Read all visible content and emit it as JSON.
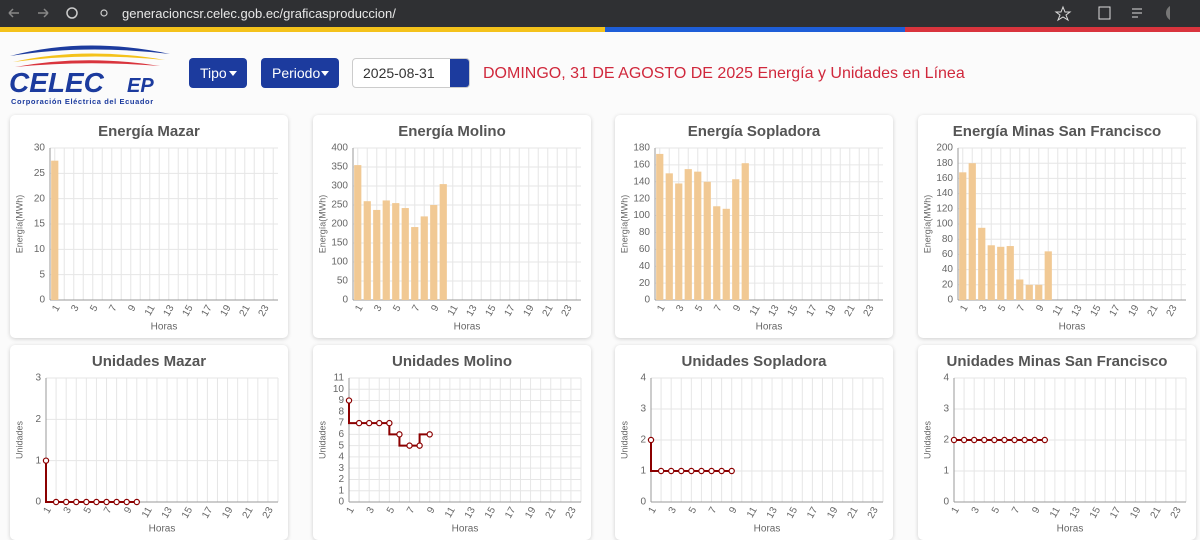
{
  "browser": {
    "url": "generacioncsr.celec.gob.ec/graficasproduccion/"
  },
  "header": {
    "logo": {
      "name": "CELEC",
      "suffix": "EP",
      "tagline": "Corporación Eléctrica del Ecuador"
    },
    "buttons": [
      "Tipo",
      "Periodo"
    ],
    "date": "2025-08-31",
    "heading": "DOMINGO, 31 DE AGOSTO DE 2025 Energía y Unidades en Línea"
  },
  "chart_data": [
    {
      "type": "bar",
      "title": "Energía Mazar",
      "x_label": "Horas",
      "y_label": "Energía(MWh)",
      "categories": [
        1,
        null,
        3,
        null,
        5,
        null,
        7,
        null,
        9,
        null,
        11,
        null,
        13,
        null,
        15,
        null,
        17,
        null,
        19,
        null,
        21,
        null,
        23,
        null
      ],
      "values": [
        27.5,
        null,
        null,
        null,
        null,
        null,
        null,
        null,
        null,
        null,
        null,
        null,
        null,
        null,
        null,
        null,
        null,
        null,
        null,
        null,
        null,
        null,
        null,
        null
      ],
      "color": "#f1c994",
      "ylim": [
        0,
        30
      ],
      "yticks": [
        0,
        5,
        10,
        15,
        20,
        25,
        30
      ],
      "grid": true
    },
    {
      "type": "bar",
      "title": "Energía Molino",
      "x_label": "Horas",
      "y_label": "Energía(MWh)",
      "categories": [
        1,
        null,
        3,
        null,
        5,
        null,
        7,
        null,
        9,
        null,
        11,
        null,
        13,
        null,
        15,
        null,
        17,
        null,
        19,
        null,
        21,
        null,
        23,
        null
      ],
      "values": [
        355,
        260,
        237,
        262,
        255,
        242,
        192,
        220,
        250,
        305,
        null,
        null,
        null,
        null,
        null,
        null,
        null,
        null,
        null,
        null,
        null,
        null,
        null,
        null
      ],
      "color": "#f1c994",
      "ylim": [
        0,
        400
      ],
      "yticks": [
        0,
        50,
        100,
        150,
        200,
        250,
        300,
        350,
        400
      ],
      "grid": true
    },
    {
      "type": "bar",
      "title": "Energía Sopladora",
      "x_label": "Horas",
      "y_label": "Energía(MWh)",
      "categories": [
        1,
        null,
        3,
        null,
        5,
        null,
        7,
        null,
        9,
        null,
        11,
        null,
        13,
        null,
        15,
        null,
        17,
        null,
        19,
        null,
        21,
        null,
        23,
        null
      ],
      "values": [
        173,
        150,
        138,
        155,
        152,
        140,
        111,
        108,
        143,
        162,
        null,
        null,
        null,
        null,
        null,
        null,
        null,
        null,
        null,
        null,
        null,
        null,
        null,
        null
      ],
      "color": "#f1c994",
      "ylim": [
        0,
        180
      ],
      "yticks": [
        0,
        20,
        40,
        60,
        80,
        100,
        120,
        140,
        160,
        180
      ],
      "grid": true
    },
    {
      "type": "bar",
      "title": "Energía Minas San Francisco",
      "x_label": "Horas",
      "y_label": "Energía(MWh)",
      "categories": [
        1,
        null,
        3,
        null,
        5,
        null,
        7,
        null,
        9,
        null,
        11,
        null,
        13,
        null,
        15,
        null,
        17,
        null,
        19,
        null,
        21,
        null,
        23,
        null
      ],
      "values": [
        168,
        180,
        95,
        72,
        70,
        71,
        27,
        20,
        20,
        64,
        null,
        null,
        null,
        null,
        null,
        null,
        null,
        null,
        null,
        null,
        null,
        null,
        null,
        null
      ],
      "color": "#f1c994",
      "ylim": [
        0,
        200
      ],
      "yticks": [
        0,
        20,
        40,
        60,
        80,
        100,
        120,
        140,
        160,
        180,
        200
      ],
      "grid": true
    },
    {
      "type": "line",
      "title": "Unidades Mazar",
      "x_label": "Horas",
      "y_label": "Unidades",
      "categories": [
        1,
        null,
        3,
        null,
        5,
        null,
        7,
        null,
        9,
        null,
        11,
        null,
        13,
        null,
        15,
        null,
        17,
        null,
        19,
        null,
        21,
        null,
        23,
        null
      ],
      "values": [
        1,
        0,
        0,
        0,
        0,
        0,
        0,
        0,
        0,
        0,
        null,
        null,
        null,
        null,
        null,
        null,
        null,
        null,
        null,
        null,
        null,
        null,
        null,
        null
      ],
      "color": "#8b0000",
      "ylim": [
        0,
        3
      ],
      "yticks": [
        0,
        1,
        2,
        3
      ],
      "grid": true
    },
    {
      "type": "line",
      "title": "Unidades Molino",
      "x_label": "Horas",
      "y_label": "Unidades",
      "categories": [
        1,
        null,
        3,
        null,
        5,
        null,
        7,
        null,
        9,
        null,
        11,
        null,
        13,
        null,
        15,
        null,
        17,
        null,
        19,
        null,
        21,
        null,
        23,
        null
      ],
      "values": [
        9,
        7,
        7,
        7,
        7,
        6,
        5,
        5,
        6,
        null,
        null,
        null,
        null,
        null,
        null,
        null,
        null,
        null,
        null,
        null,
        null,
        null,
        null,
        null
      ],
      "color": "#8b0000",
      "ylim": [
        0,
        11
      ],
      "yticks": [
        0,
        1,
        2,
        3,
        4,
        5,
        6,
        7,
        8,
        9,
        10,
        11
      ],
      "grid": true
    },
    {
      "type": "line",
      "title": "Unidades Sopladora",
      "x_label": "Horas",
      "y_label": "Unidades",
      "categories": [
        1,
        null,
        3,
        null,
        5,
        null,
        7,
        null,
        9,
        null,
        11,
        null,
        13,
        null,
        15,
        null,
        17,
        null,
        19,
        null,
        21,
        null,
        23,
        null
      ],
      "values": [
        2,
        1,
        1,
        1,
        1,
        1,
        1,
        1,
        1,
        null,
        null,
        null,
        null,
        null,
        null,
        null,
        null,
        null,
        null,
        null,
        null,
        null,
        null,
        null
      ],
      "color": "#8b0000",
      "ylim": [
        0,
        4
      ],
      "yticks": [
        0,
        1,
        2,
        3,
        4
      ],
      "grid": true
    },
    {
      "type": "line",
      "title": "Unidades Minas San Francisco",
      "x_label": "Horas",
      "y_label": "Unidades",
      "categories": [
        1,
        null,
        3,
        null,
        5,
        null,
        7,
        null,
        9,
        null,
        11,
        null,
        13,
        null,
        15,
        null,
        17,
        null,
        19,
        null,
        21,
        null,
        23,
        null
      ],
      "values": [
        2,
        2,
        2,
        2,
        2,
        2,
        2,
        2,
        2,
        2,
        null,
        null,
        null,
        null,
        null,
        null,
        null,
        null,
        null,
        null,
        null,
        null,
        null,
        null
      ],
      "color": "#8b0000",
      "ylim": [
        0,
        4
      ],
      "yticks": [
        0,
        1,
        2,
        3,
        4
      ],
      "grid": true
    }
  ]
}
